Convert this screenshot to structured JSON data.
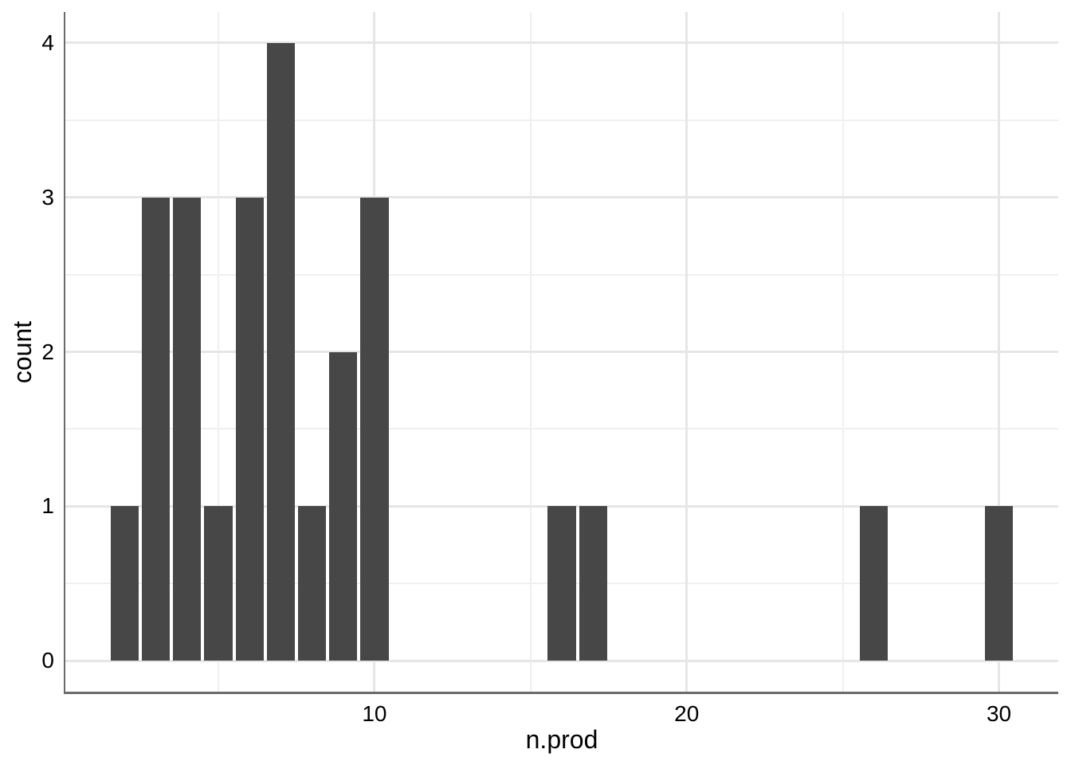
{
  "chart_data": {
    "type": "bar",
    "title": "",
    "xlabel": "n.prod",
    "ylabel": "count",
    "x": [
      2,
      3,
      4,
      5,
      6,
      7,
      8,
      9,
      10,
      16,
      17,
      26,
      30
    ],
    "values": [
      1,
      3,
      3,
      1,
      3,
      4,
      1,
      2,
      3,
      1,
      1,
      1,
      1
    ],
    "bar_width": 0.9,
    "xlim": [
      0.1,
      31.9
    ],
    "ylim": [
      -0.2,
      4.2
    ],
    "x_major_ticks": [
      10,
      20,
      30
    ],
    "x_minor_gridlines": [
      5,
      15,
      25
    ],
    "y_major_ticks": [
      0,
      1,
      2,
      3,
      4
    ],
    "y_minor_gridlines": [
      0.5,
      1.5,
      2.5,
      3.5
    ],
    "grid": "major and minor, no top/right border, axis lines on left and bottom",
    "legend_position": "none",
    "colors": {
      "bar_fill": "#474747",
      "axis_line": "#6b6b6b",
      "grid_major": "#e6e6e6",
      "grid_minor": "#f0f0f0",
      "text": "#000000",
      "background": "#ffffff"
    }
  }
}
